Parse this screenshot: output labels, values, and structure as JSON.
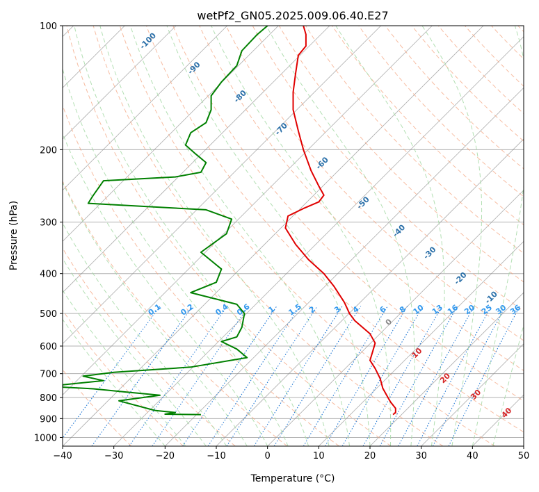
{
  "chart_data": {
    "type": "line",
    "title": "wetPf2_GN05.2025.009.06.40.E27",
    "xlabel": "Temperature (°C)",
    "ylabel": "Pressure (hPa)",
    "xlim": [
      -40,
      50
    ],
    "ylim": [
      1050,
      100
    ],
    "y_scale": "log",
    "grid": true,
    "x_ticks": [
      "−40",
      "−30",
      "−20",
      "−10",
      "0",
      "10",
      "20",
      "30",
      "40",
      "50"
    ],
    "y_ticks": [
      "100",
      "200",
      "300",
      "400",
      "500",
      "600",
      "700",
      "800",
      "900",
      "1000"
    ],
    "colors": {
      "temperature": "#e00000",
      "dewpoint": "#008000",
      "dry_adiabat": "#f4a582",
      "moist_adiabat": "#a6d9a6",
      "mixing_ratio": "#1f77d4",
      "isotherm": "#8c8c8c"
    },
    "series": [
      {
        "points": [
          [
            24.5,
            880
          ],
          [
            25,
            870
          ],
          [
            25,
            850
          ],
          [
            24,
            820
          ],
          [
            23.5,
            800
          ],
          [
            22.5,
            760
          ],
          [
            22,
            720
          ],
          [
            21,
            680
          ],
          [
            20,
            650
          ],
          [
            20.5,
            620
          ],
          [
            21,
            590
          ],
          [
            20,
            560
          ],
          [
            17,
            520
          ],
          [
            16,
            500
          ],
          [
            15,
            470
          ],
          [
            13,
            430
          ],
          [
            11,
            400
          ],
          [
            8,
            370
          ],
          [
            5.5,
            340
          ],
          [
            3.5,
            310
          ],
          [
            4,
            290
          ],
          [
            7,
            278
          ],
          [
            10,
            268
          ],
          [
            11,
            258
          ],
          [
            10,
            245
          ],
          [
            8.5,
            225
          ],
          [
            7,
            200
          ],
          [
            6,
            180
          ],
          [
            5,
            160
          ],
          [
            5,
            145
          ],
          [
            5.5,
            130
          ],
          [
            6,
            118
          ],
          [
            7.5,
            112
          ],
          [
            7.5,
            105
          ],
          [
            7,
            100
          ]
        ]
      },
      {
        "points": [
          [
            -13,
            880
          ],
          [
            -20,
            878
          ],
          [
            -18,
            870
          ],
          [
            -22,
            860
          ],
          [
            -29,
            815
          ],
          [
            -21,
            790
          ],
          [
            -28,
            775
          ],
          [
            -34,
            762
          ],
          [
            -40,
            755
          ],
          [
            -40,
            745
          ],
          [
            -32,
            728
          ],
          [
            -36,
            710
          ],
          [
            -30,
            695
          ],
          [
            -15,
            675
          ],
          [
            -4,
            640
          ],
          [
            -6,
            610
          ],
          [
            -9,
            585
          ],
          [
            -6,
            570
          ],
          [
            -5,
            540
          ],
          [
            -4.5,
            500
          ],
          [
            -6,
            475
          ],
          [
            -15,
            445
          ],
          [
            -10,
            420
          ],
          [
            -9,
            390
          ],
          [
            -13,
            355
          ],
          [
            -8,
            320
          ],
          [
            -7,
            295
          ],
          [
            -12,
            280
          ],
          [
            -35,
            270
          ],
          [
            -34,
            258
          ],
          [
            -32,
            238
          ],
          [
            -18,
            233
          ],
          [
            -13,
            227
          ],
          [
            -12,
            215
          ],
          [
            -14,
            205
          ],
          [
            -16,
            195
          ],
          [
            -15,
            182
          ],
          [
            -12,
            172
          ],
          [
            -11,
            160
          ],
          [
            -11,
            148
          ],
          [
            -9,
            137
          ],
          [
            -6,
            125
          ],
          [
            -5,
            115
          ],
          [
            -2,
            105
          ],
          [
            0,
            100
          ]
        ]
      }
    ],
    "mixing_ratio_labels": [
      "0.1",
      "0.2",
      "0.4",
      "0.6",
      "1",
      "1.5",
      "2",
      "3",
      "4",
      "6",
      "8",
      "10",
      "13",
      "16",
      "20",
      "25",
      "30",
      "36"
    ],
    "dry_adiabat_labels": [
      "-100",
      "-90",
      "-80",
      "-70",
      "-60",
      "-50",
      "-40",
      "-30",
      "-20",
      "-10"
    ],
    "moist_adiabat_labels": [
      "0",
      "10",
      "20",
      "30",
      "40"
    ]
  }
}
